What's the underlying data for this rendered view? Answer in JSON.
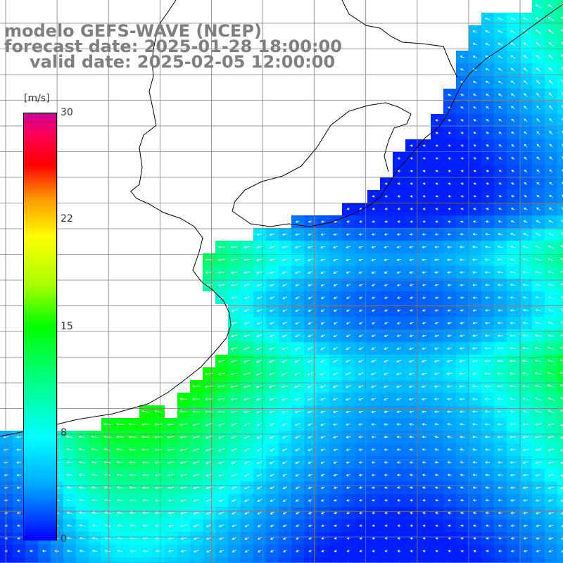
{
  "title": {
    "line1": "modelo GEFS-WAVE (NCEP)",
    "line2": "forecast date: 2025-01-28 18:00:00",
    "line3": "valid date: 2025-02-05 12:00:00"
  },
  "colorbar": {
    "unit": "[m/s]",
    "min": 0,
    "max": 30,
    "ticks": [
      "30",
      "22",
      "15",
      "8",
      "0"
    ],
    "tick_values": [
      30,
      22,
      15,
      8,
      0
    ],
    "colors": [
      "#0000ff",
      "#00aaff",
      "#00ffff",
      "#00ff80",
      "#00ff00",
      "#aaff00",
      "#ffff00",
      "#ff9900",
      "#ff0000",
      "#cc0099"
    ]
  },
  "map": {
    "land_color": "#ffffff",
    "coast_color": "#000000",
    "grid_color": "#7f7f7f",
    "arrow_color": "#ffffff"
  }
}
